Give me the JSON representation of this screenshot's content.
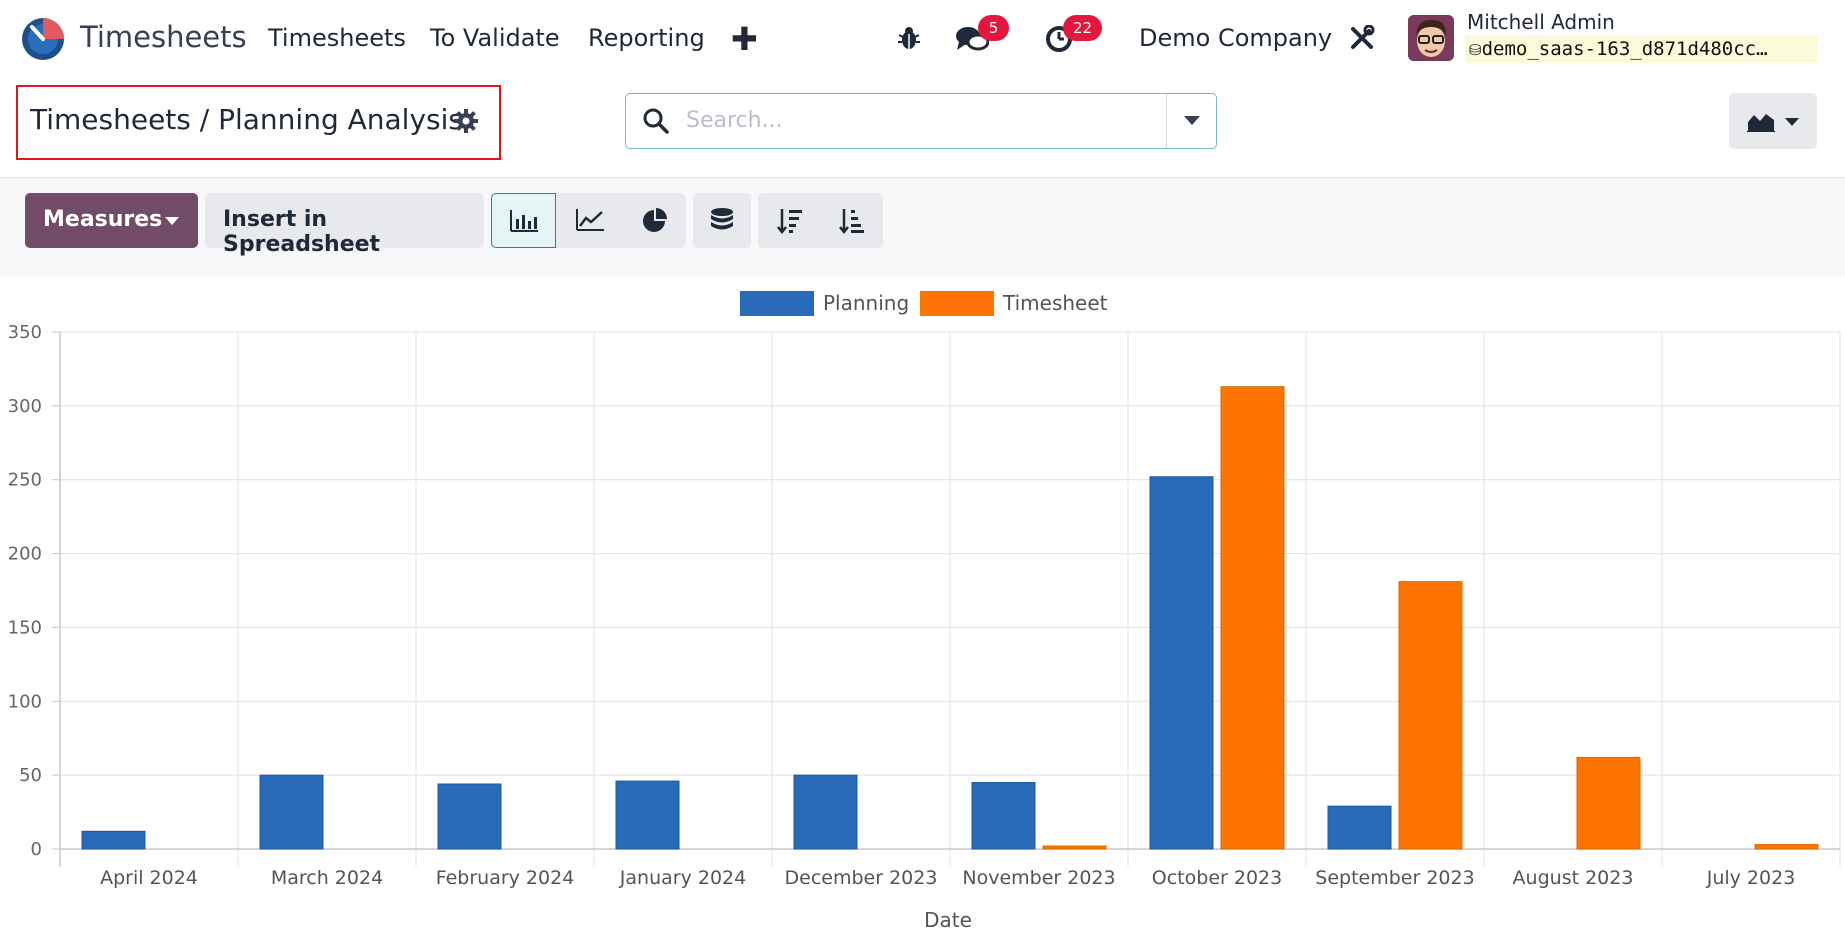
{
  "navbar": {
    "app_name": "Timesheets",
    "menu": [
      "Timesheets",
      "To Validate",
      "Reporting"
    ],
    "add_icon": "plus-icon",
    "debug_icon": "bug-icon",
    "messages_badge": "5",
    "activities_badge": "22",
    "company": "Demo Company",
    "settings_icon": "tools-icon",
    "user_name": "Mitchell Admin",
    "database": "demo_saas-163_d871d480cc…"
  },
  "control_panel": {
    "breadcrumb": "Timesheets / Planning Analysis",
    "search_placeholder": "Search..."
  },
  "toolbar": {
    "measures_label": "Measures",
    "spreadsheet_label": "Insert in Spreadsheet",
    "views": [
      "bar-chart-icon",
      "line-chart-icon",
      "pie-chart-icon",
      "stacked-icon",
      "sort-descending-icon",
      "sort-ascending-icon"
    ]
  },
  "colors": {
    "brand": "#714b67",
    "planning": "#286bb8",
    "timesheet": "#ff7400",
    "badge": "#e5173f"
  },
  "chart_data": {
    "type": "bar",
    "xlabel": "Date",
    "ylabel": "",
    "ylim": [
      0,
      350
    ],
    "yticks": [
      0,
      50,
      100,
      150,
      200,
      250,
      300,
      350
    ],
    "grid": true,
    "legend": "top-center",
    "categories": [
      "April 2024",
      "March 2024",
      "February 2024",
      "January 2024",
      "December 2023",
      "November 2023",
      "October 2023",
      "September 2023",
      "August 2023",
      "July 2023"
    ],
    "series": [
      {
        "name": "Planning",
        "color": "#286bb8",
        "values": [
          12,
          50,
          44,
          46,
          50,
          45,
          252,
          29,
          0,
          0
        ]
      },
      {
        "name": "Timesheet",
        "color": "#ff7400",
        "values": [
          0,
          0,
          0,
          0,
          0,
          2,
          313,
          181,
          62,
          3
        ]
      }
    ]
  }
}
